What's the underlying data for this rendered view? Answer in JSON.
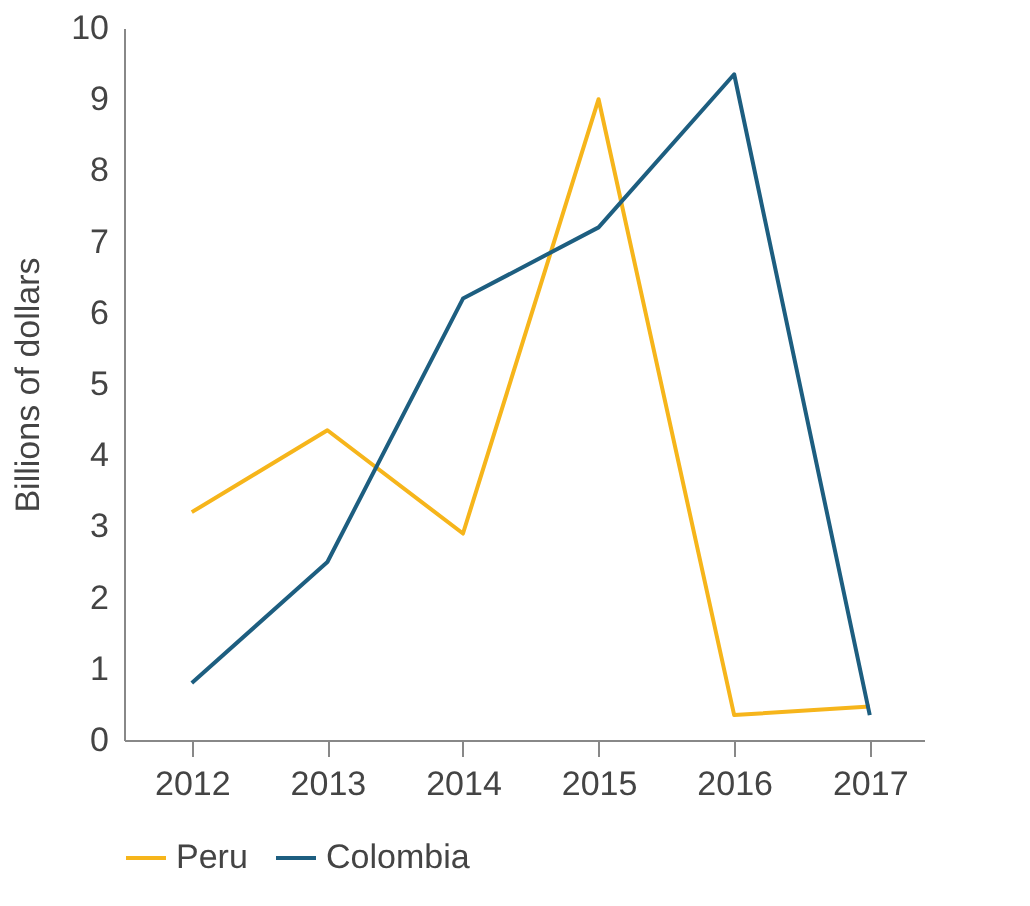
{
  "chart_data": {
    "type": "line",
    "ylabel": "Billions of dollars",
    "x": [
      2012,
      2013,
      2014,
      2015,
      2016,
      2017
    ],
    "series": [
      {
        "name": "Peru",
        "color": "#f6b51b",
        "values": [
          3.2,
          4.35,
          2.9,
          9.0,
          0.35,
          0.47
        ]
      },
      {
        "name": "Colombia",
        "color": "#1d5e80",
        "values": [
          0.8,
          2.5,
          6.2,
          7.2,
          9.35,
          0.35
        ]
      }
    ],
    "xlim": [
      2011.5,
      2017.4
    ],
    "xticks": [
      2012,
      2013,
      2014,
      2015,
      2016,
      2017
    ],
    "ylim": [
      0,
      10
    ],
    "yticks": [
      0,
      1,
      2,
      3,
      4,
      5,
      6,
      7,
      8,
      9,
      10
    ],
    "grid": false,
    "legend": "bottom",
    "marker": "none",
    "line_style": "solid"
  }
}
